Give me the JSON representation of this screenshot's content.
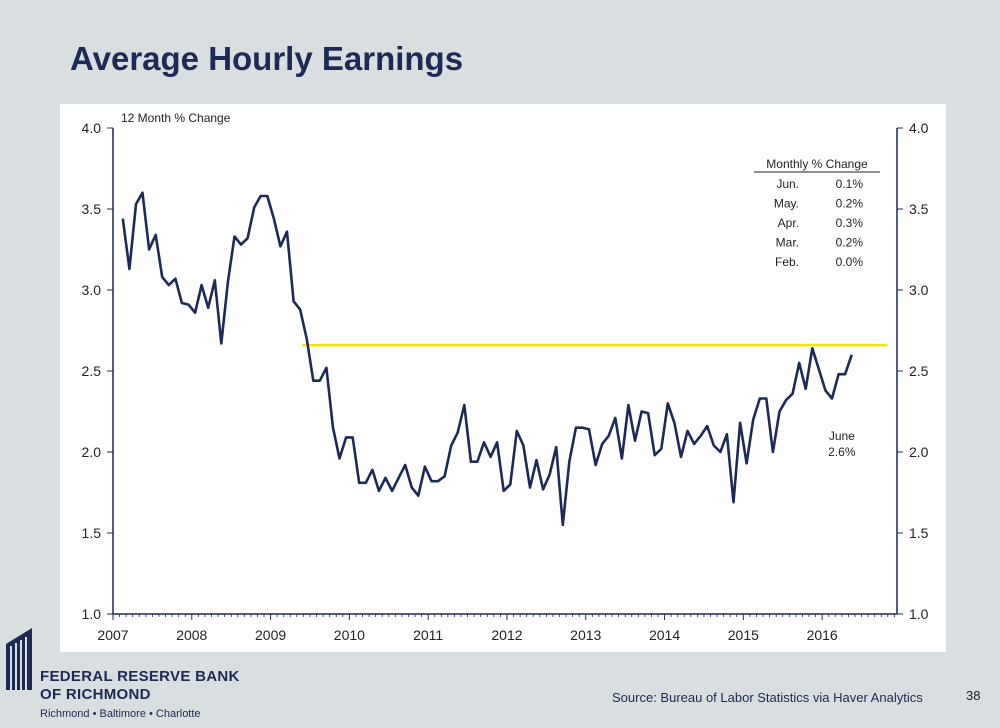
{
  "slide": {
    "title": "Average Hourly Earnings",
    "source": "Source: Bureau of Labor Statistics via Haver Analytics",
    "page_number": "38"
  },
  "logo": {
    "line1": "FEDERAL RESERVE BANK",
    "line2": "OF RICHMOND",
    "cities": "Richmond • Baltimore • Charlotte",
    "color": "#1c2a55"
  },
  "chart_data": {
    "type": "line",
    "ylabel": "12 Month % Change",
    "ylim": [
      1.0,
      4.0
    ],
    "y_ticks": [
      "1.0",
      "1.5",
      "2.0",
      "2.5",
      "3.0",
      "3.5",
      "4.0"
    ],
    "x_ticks": [
      "2007",
      "2008",
      "2009",
      "2010",
      "2011",
      "2012",
      "2013",
      "2014",
      "2015",
      "2016"
    ],
    "xlim": [
      2007.0,
      2016.95
    ],
    "series": [
      {
        "color": "#1c2a55",
        "x_start": 2007.125,
        "x_step": 0.0833333,
        "values": [
          3.44,
          3.13,
          3.53,
          3.6,
          3.25,
          3.34,
          3.08,
          3.03,
          3.07,
          2.92,
          2.91,
          2.86,
          3.03,
          2.89,
          3.06,
          2.67,
          3.05,
          3.33,
          3.28,
          3.32,
          3.51,
          3.58,
          3.58,
          3.44,
          3.27,
          3.36,
          2.93,
          2.88,
          2.7,
          2.44,
          2.44,
          2.52,
          2.15,
          1.96,
          2.09,
          2.09,
          1.81,
          1.81,
          1.89,
          1.76,
          1.84,
          1.76,
          1.84,
          1.92,
          1.78,
          1.73,
          1.91,
          1.82,
          1.82,
          1.85,
          2.04,
          2.12,
          2.29,
          1.94,
          1.94,
          2.06,
          1.97,
          2.06,
          1.76,
          1.8,
          2.13,
          2.04,
          1.78,
          1.95,
          1.77,
          1.86,
          2.03,
          1.55,
          1.94,
          2.15,
          2.15,
          2.14,
          1.92,
          2.05,
          2.1,
          2.21,
          1.96,
          2.29,
          2.07,
          2.25,
          2.24,
          1.98,
          2.02,
          2.3,
          2.18,
          1.97,
          2.13,
          2.05,
          2.1,
          2.16,
          2.04,
          2.0,
          2.11,
          1.69,
          2.18,
          1.93,
          2.2,
          2.33,
          2.33,
          2.0,
          2.25,
          2.32,
          2.36,
          2.55,
          2.39,
          2.64,
          2.51,
          2.38,
          2.33,
          2.48,
          2.48,
          2.6
        ]
      }
    ],
    "reference_line": {
      "value": 2.66,
      "x_from": 2009.4,
      "x_to": 2016.83,
      "color": "#f4e600"
    },
    "annotation": {
      "line1": "June",
      "line2": "2.6%",
      "x": 2016.25,
      "y": 2.0
    },
    "monthly_table": {
      "header": "Monthly % Change",
      "rows": [
        {
          "month": "Jun.",
          "value": "0.1%"
        },
        {
          "month": "May.",
          "value": "0.2%"
        },
        {
          "month": "Apr.",
          "value": "0.3%"
        },
        {
          "month": "Mar.",
          "value": "0.2%"
        },
        {
          "month": "Feb.",
          "value": "0.0%"
        }
      ]
    }
  }
}
